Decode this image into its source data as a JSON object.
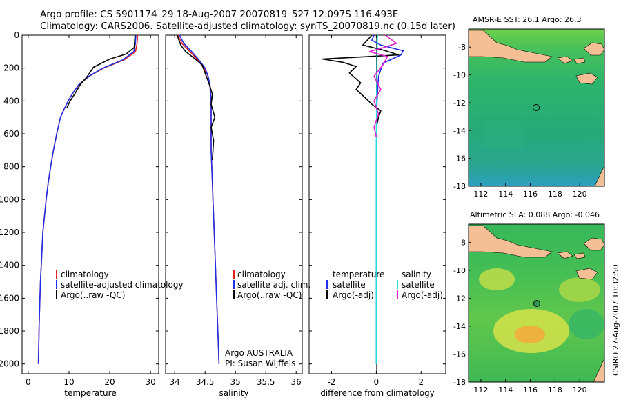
{
  "title_line1": "Argo profile: CS 5901174_29 18-Aug-2007 20070819_527 12.097S 116.493E",
  "title_line2": "Climatology: CARS2006. Satellite-adjusted climatology: synTS_20070819.nc (0.15d later)",
  "side_credit": "CSIRO 27-Aug-2007 10:32:50",
  "colors": {
    "red": "#e8201f",
    "blue": "#1f2fe6",
    "black": "#000000",
    "cyan": "#22e0e0",
    "magenta": "#e020d0",
    "land": "#f5bf96"
  },
  "chart_data": [
    {
      "type": "line",
      "xlabel": "temperature",
      "xlim": [
        -1.5,
        32
      ],
      "ylim": [
        0,
        2060
      ],
      "y_reversed": true,
      "xticks": [
        0,
        10,
        20,
        30
      ],
      "yticks": [
        0,
        200,
        400,
        600,
        800,
        1000,
        1200,
        1400,
        1600,
        1800,
        2000
      ],
      "legend": [
        "climatology",
        "satellite-adjusted climatology",
        "Argo(..raw -QC)"
      ],
      "series": [
        {
          "name": "climatology",
          "color": "red",
          "x": [
            26.8,
            26.7,
            26.3,
            23.5,
            18.5,
            15.0,
            12.5,
            11.0,
            9.8,
            8.8,
            7.9,
            7.0,
            6.2,
            5.5,
            4.9,
            4.4,
            4.0,
            3.6,
            3.3,
            3.0,
            2.7,
            2.5
          ],
          "y": [
            0,
            50,
            100,
            150,
            200,
            250,
            300,
            350,
            400,
            450,
            500,
            600,
            700,
            800,
            900,
            1000,
            1100,
            1200,
            1350,
            1500,
            1750,
            2000
          ]
        },
        {
          "name": "satellite-adjusted climatology",
          "color": "blue",
          "x": [
            26.4,
            26.3,
            25.9,
            23.2,
            18.3,
            14.9,
            12.4,
            11.0,
            9.8,
            8.8,
            7.9,
            7.0,
            6.2,
            5.5,
            4.9,
            4.4,
            4.0,
            3.6,
            3.3,
            3.0,
            2.7,
            2.5
          ],
          "y": [
            0,
            50,
            100,
            150,
            200,
            250,
            300,
            350,
            400,
            450,
            500,
            600,
            700,
            800,
            900,
            1000,
            1100,
            1200,
            1350,
            1500,
            1750,
            2000
          ]
        },
        {
          "name": "Argo(..raw -QC)",
          "color": "black",
          "x": [
            26.2,
            26.0,
            24.0,
            20.0,
            16.0,
            14.5,
            12.8,
            11.6,
            10.3,
            9.5
          ],
          "y": [
            0,
            75,
            115,
            145,
            195,
            250,
            300,
            350,
            400,
            440
          ]
        }
      ]
    },
    {
      "type": "line",
      "xlabel": "salinity",
      "xlim": [
        33.85,
        36.1
      ],
      "ylim": [
        0,
        2060
      ],
      "y_reversed": true,
      "xticks": [
        34,
        34.5,
        35,
        35.5,
        36
      ],
      "yticks": [
        0,
        200,
        400,
        600,
        800,
        1000,
        1200,
        1400,
        1600,
        1800,
        2000
      ],
      "legend": [
        "climatology",
        "satellite adj. clim.",
        "Argo(..raw -QC)"
      ],
      "annotations": [
        "Argo AUSTRALIA",
        "PI: Susan Wijffels"
      ],
      "series": [
        {
          "name": "climatology",
          "color": "red",
          "x": [
            34.05,
            34.12,
            34.25,
            34.38,
            34.48,
            34.55,
            34.58,
            34.6,
            34.6,
            34.6,
            34.6,
            34.61,
            34.62,
            34.63,
            34.64,
            34.65,
            34.67,
            34.69,
            34.71,
            34.72,
            34.73
          ],
          "y": [
            0,
            50,
            100,
            150,
            200,
            250,
            300,
            400,
            500,
            600,
            700,
            800,
            900,
            1000,
            1100,
            1200,
            1400,
            1600,
            1800,
            1900,
            2000
          ]
        },
        {
          "name": "satellite adj. clim.",
          "color": "blue",
          "x": [
            34.08,
            34.15,
            34.28,
            34.4,
            34.5,
            34.55,
            34.58,
            34.6,
            34.6,
            34.6,
            34.6,
            34.61,
            34.62,
            34.63,
            34.64,
            34.65,
            34.67,
            34.69,
            34.71,
            34.72,
            34.73
          ],
          "y": [
            0,
            50,
            100,
            150,
            200,
            250,
            300,
            400,
            500,
            600,
            700,
            800,
            900,
            1000,
            1100,
            1200,
            1400,
            1600,
            1800,
            1900,
            2000
          ]
        },
        {
          "name": "Argo(..raw -QC)",
          "color": "black",
          "x": [
            34.04,
            34.1,
            34.18,
            34.32,
            34.45,
            34.5,
            34.57,
            34.62,
            34.6,
            34.66,
            34.6,
            34.64,
            34.62
          ],
          "y": [
            0,
            60,
            100,
            140,
            180,
            230,
            300,
            360,
            420,
            500,
            560,
            640,
            760
          ]
        }
      ]
    },
    {
      "type": "line",
      "xlabel": "difference from climatology",
      "xlim": [
        -3,
        3.1
      ],
      "ylim": [
        0,
        2060
      ],
      "y_reversed": true,
      "xticks": [
        -2,
        0,
        2
      ],
      "yticks": [
        0,
        200,
        400,
        600,
        800,
        1000,
        1200,
        1400,
        1600,
        1800,
        2000
      ],
      "legend_headers": [
        "temperature",
        "salinity"
      ],
      "legend": [
        "satellite",
        "Argo(-adj)",
        "satellite",
        "Argo(-adj)"
      ],
      "series": [
        {
          "name": "temperature satellite",
          "color": "blue",
          "x": [
            -0.1,
            -0.2,
            0.2,
            1.2,
            1.1,
            0.3,
            0.1,
            0.05,
            0.02,
            0.01,
            0,
            0,
            0,
            0
          ],
          "y": [
            0,
            30,
            60,
            95,
            120,
            170,
            250,
            350,
            450,
            600,
            800,
            1000,
            1500,
            2000
          ]
        },
        {
          "name": "temperature Argo(-adj)",
          "color": "black",
          "x": [
            -0.2,
            -0.6,
            0.3,
            1.0,
            -2.4,
            -1.5,
            -0.9,
            -1.2,
            -0.7,
            -0.9,
            -0.5,
            -0.2,
            0.2,
            0.1,
            0
          ],
          "y": [
            0,
            60,
            90,
            120,
            145,
            165,
            190,
            230,
            290,
            330,
            380,
            420,
            460,
            500,
            560
          ]
        },
        {
          "name": "salinity satellite",
          "color": "cyan",
          "x": [
            0.05,
            0.03,
            0.02,
            0.01,
            0,
            0,
            0,
            0
          ],
          "y": [
            0,
            100,
            300,
            500,
            700,
            1000,
            1500,
            2000
          ]
        },
        {
          "name": "salinity Argo(-adj)",
          "color": "magenta",
          "x": [
            0.4,
            0.9,
            0.2,
            -0.3,
            0.5,
            0.3,
            -0.1,
            0.2,
            -0.1,
            0.1,
            -0.1,
            0
          ],
          "y": [
            0,
            50,
            80,
            100,
            130,
            180,
            250,
            330,
            400,
            480,
            560,
            620
          ]
        }
      ]
    },
    {
      "type": "heatmap",
      "title": "AMSR-E SST: 26.1 Argo: 26.3",
      "xlim": [
        111,
        122
      ],
      "ylim": [
        -18,
        -6.7
      ],
      "xticks": [
        112,
        114,
        116,
        118,
        120
      ],
      "yticks": [
        -8,
        -10,
        -12,
        -14,
        -16,
        -18
      ],
      "marker": {
        "lon": 116.493,
        "lat": -12.097
      }
    },
    {
      "type": "heatmap",
      "title": "Altimetric SLA: 0.088 Argo: -0.046",
      "xlim": [
        111,
        122
      ],
      "ylim": [
        -18,
        -6.7
      ],
      "xticks": [
        112,
        114,
        116,
        118,
        120
      ],
      "yticks": [
        -8,
        -10,
        -12,
        -14,
        -16,
        -18
      ],
      "marker": {
        "lon": 116.493,
        "lat": -12.097
      }
    }
  ]
}
